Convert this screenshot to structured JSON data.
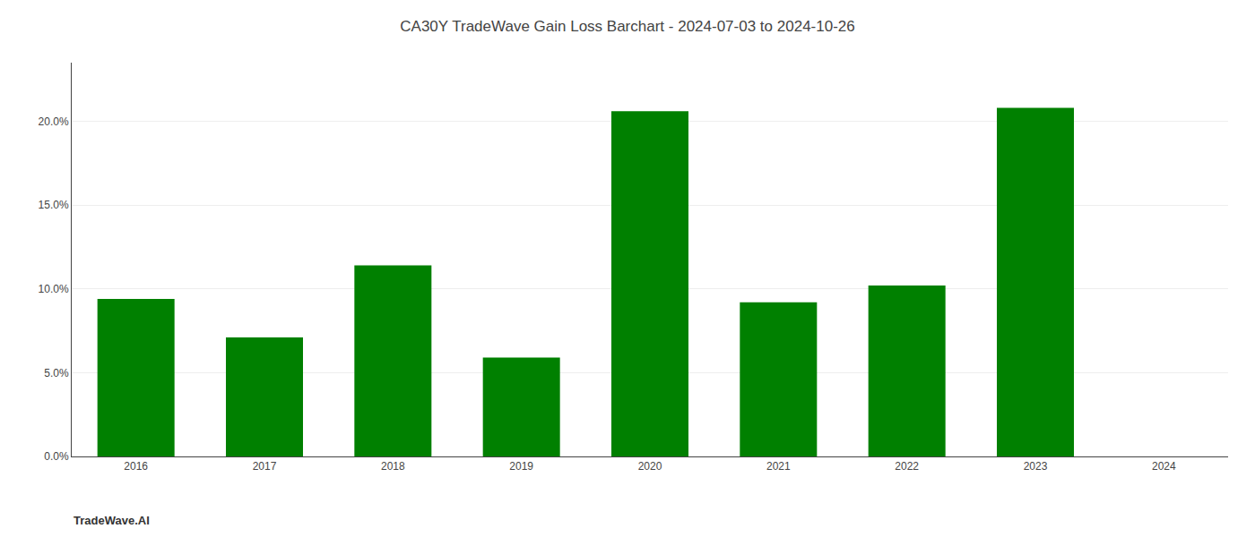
{
  "chart_data": {
    "type": "bar",
    "title": "CA30Y TradeWave Gain Loss Barchart - 2024-07-03 to 2024-10-26",
    "annotations": [
      {
        "text": "TradeWave.AI"
      }
    ],
    "categories": [
      "2016",
      "2017",
      "2018",
      "2019",
      "2020",
      "2021",
      "2022",
      "2023",
      "2024"
    ],
    "values": [
      0.094,
      0.071,
      0.114,
      0.059,
      0.206,
      0.092,
      0.102,
      0.208,
      null
    ],
    "color": "#008000",
    "ylim": [
      0,
      0.235
    ],
    "yticks": [
      {
        "value": 0.0,
        "label": "0.0%"
      },
      {
        "value": 0.05,
        "label": "5.0%"
      },
      {
        "value": 0.1,
        "label": "10.0%"
      },
      {
        "value": 0.15,
        "label": "15.0%"
      },
      {
        "value": 0.2,
        "label": "20.0%"
      }
    ],
    "grid": true
  }
}
